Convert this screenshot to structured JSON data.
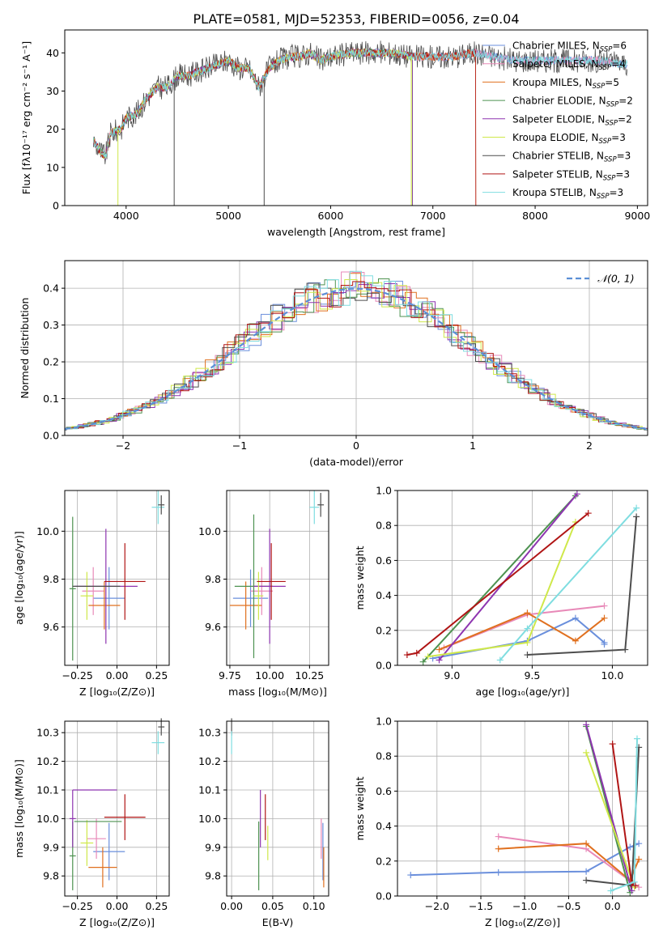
{
  "title": "PLATE=0581, MJD=52353, FIBERID=0056, z=0.04",
  "colors": {
    "Chabrier MILES": "#6a8fdc",
    "Salpeter MILES": "#e889b8",
    "Kroupa MILES": "#e0701f",
    "Chabrier ELODIE": "#4d9250",
    "Salpeter ELODIE": "#8e35b0",
    "Kroupa ELODIE": "#cfe84a",
    "Chabrier STELIB": "#4d4d4d",
    "Salpeter STELIB": "#b01515",
    "Kroupa STELIB": "#7fdde0",
    "normal": "#5b8fd6"
  },
  "chart_data": [
    {
      "type": "line",
      "xlabel": "wavelength [Angstrom, rest frame]",
      "ylabel": "Flux [fλ10⁻¹⁷ erg cm⁻² s⁻¹ A⁻¹]",
      "xlim": [
        3400,
        9100
      ],
      "ylim": [
        0,
        46
      ],
      "xticks": [
        4000,
        5000,
        6000,
        7000,
        8000,
        9000
      ],
      "yticks": [
        0,
        10,
        20,
        30,
        40
      ],
      "legend": [
        "Chabrier MILES, N_SSP=6",
        "Salpeter MILES, N_SSP=4",
        "Kroupa MILES, N_SSP=5",
        "Chabrier ELODIE, N_SSP=2",
        "Salpeter ELODIE, N_SSP=2",
        "Kroupa ELODIE, N_SSP=3",
        "Chabrier STELIB, N_SSP=3",
        "Salpeter STELIB, N_SSP=3",
        "Kroupa STELIB, N_SSP=3"
      ],
      "legend_position": "right",
      "series": [
        {
          "name": "Chabrier MILES",
          "x_range": [
            3680,
            8900
          ],
          "profile": [
            [
              3680,
              17
            ],
            [
              3750,
              14
            ],
            [
              3800,
              13
            ],
            [
              3850,
              19
            ],
            [
              3950,
              20
            ],
            [
              4000,
              23
            ],
            [
              4100,
              24
            ],
            [
              4200,
              28
            ],
            [
              4300,
              31
            ],
            [
              4400,
              31
            ],
            [
              4500,
              34
            ],
            [
              4600,
              34
            ],
            [
              4700,
              35
            ],
            [
              4800,
              36
            ],
            [
              4900,
              37
            ],
            [
              5000,
              38
            ],
            [
              5100,
              36
            ],
            [
              5200,
              36
            ],
            [
              5300,
              31
            ],
            [
              5400,
              36
            ],
            [
              5500,
              38
            ],
            [
              5600,
              39
            ],
            [
              5700,
              39
            ],
            [
              5800,
              40
            ],
            [
              5900,
              38
            ],
            [
              6000,
              39
            ],
            [
              6200,
              40
            ],
            [
              6400,
              40
            ],
            [
              6600,
              40
            ],
            [
              6800,
              39
            ],
            [
              7000,
              39
            ],
            [
              7200,
              39
            ],
            [
              7400,
              40
            ],
            [
              7600,
              39
            ],
            [
              7800,
              38
            ],
            [
              8000,
              38
            ],
            [
              8200,
              38
            ],
            [
              8400,
              38
            ],
            [
              8600,
              38
            ],
            [
              8900,
              37
            ]
          ]
        },
        {
          "name": "Salpeter MILES",
          "x_range": [
            3680,
            8800
          ]
        },
        {
          "name": "Kroupa MILES",
          "x_range": [
            3680,
            7420
          ],
          "note": "drops to 0 at ~7420 A"
        },
        {
          "name": "Chabrier ELODIE",
          "x_range": [
            3680,
            6800
          ]
        },
        {
          "name": "Salpeter ELODIE",
          "x_range": [
            3680,
            6800
          ]
        },
        {
          "name": "Kroupa ELODIE",
          "x_range": [
            3680,
            6790
          ],
          "note": "drops to 0 at ~3920 A and ~6790 A"
        },
        {
          "name": "Chabrier STELIB",
          "x_range": [
            3680,
            8900
          ],
          "note": "observed spectrum-like grey, spikes at 4470, 5350 A"
        },
        {
          "name": "Salpeter STELIB",
          "x_range": [
            3680,
            7420
          ]
        },
        {
          "name": "Kroupa STELIB",
          "x_range": [
            3680,
            8900
          ]
        }
      ]
    },
    {
      "type": "histogram",
      "xlabel": "(data-model)/error",
      "ylabel": "Normed distribution",
      "xlim": [
        -2.5,
        2.5
      ],
      "ylim": [
        0,
        0.475
      ],
      "xticks": [
        -2,
        -1,
        0,
        1,
        2
      ],
      "yticks": [
        0.0,
        0.1,
        0.2,
        0.3,
        0.4
      ],
      "grid": true,
      "legend": [
        "𝒩(0, 1)"
      ],
      "legend_position": "top-right",
      "bin_width": 0.1,
      "series": [
        {
          "name": "Chabrier MILES",
          "seed": 1
        },
        {
          "name": "Salpeter MILES",
          "seed": 2
        },
        {
          "name": "Kroupa MILES",
          "seed": 3
        },
        {
          "name": "Chabrier ELODIE",
          "seed": 4
        },
        {
          "name": "Salpeter ELODIE",
          "seed": 5
        },
        {
          "name": "Kroupa ELODIE",
          "seed": 6
        },
        {
          "name": "Chabrier STELIB",
          "seed": 7
        },
        {
          "name": "Salpeter STELIB",
          "seed": 8
        },
        {
          "name": "Kroupa STELIB",
          "seed": 9
        }
      ]
    },
    {
      "type": "errorbar",
      "xlabel": "Z [log₁₀(Z/Z⊙)]",
      "ylabel": "age  [log₁₀(age/yr)]",
      "xlim": [
        -0.33,
        0.33
      ],
      "ylim": [
        9.44,
        10.17
      ],
      "xticks": [
        -0.25,
        0,
        0.25
      ],
      "xticklabels": [
        "−0.25",
        "0.00",
        "0.25"
      ],
      "yticks": [
        9.6,
        9.8,
        10.0
      ],
      "grid": true,
      "points": [
        {
          "series": "Chabrier MILES",
          "x": -0.05,
          "xerr": 0.1,
          "y": 9.72,
          "yerr": 0.13
        },
        {
          "series": "Salpeter MILES",
          "x": -0.15,
          "xerr": 0.07,
          "y": 9.75,
          "yerr": 0.1
        },
        {
          "series": "Kroupa MILES",
          "x": -0.08,
          "xerr": 0.1,
          "y": 9.69,
          "yerr": 0.1
        },
        {
          "series": "Chabrier ELODIE",
          "x": -0.28,
          "xerr": 0.02,
          "y": 9.76,
          "yerr": 0.3
        },
        {
          "series": "Salpeter ELODIE",
          "x": -0.07,
          "xerr": 0.2,
          "y": 9.77,
          "yerr": 0.24
        },
        {
          "series": "Kroupa ELODIE",
          "x": -0.19,
          "xerr": 0.04,
          "y": 9.73,
          "yerr": 0.1
        },
        {
          "series": "Chabrier STELIB",
          "x": -0.13,
          "xerr": 0.15,
          "y": 9.77,
          "yerr": 0.0
        },
        {
          "series": "Salpeter STELIB",
          "x": 0.05,
          "xerr": 0.13,
          "y": 9.79,
          "yerr": 0.16
        },
        {
          "series": "Kroupa STELIB",
          "x": 0.26,
          "xerr": 0.04,
          "y": 10.1,
          "yerr": 0.07
        },
        {
          "series": "Chabrier STELIB",
          "x": 0.28,
          "xerr": 0.02,
          "y": 10.11,
          "yerr": 0.04
        }
      ]
    },
    {
      "type": "errorbar",
      "xlabel": "mass [log₁₀(M/M⊙)]",
      "ylabel": "",
      "xlim": [
        9.73,
        10.37
      ],
      "ylim": [
        9.44,
        10.17
      ],
      "xticks": [
        9.75,
        10.0,
        10.25
      ],
      "xticklabels": [
        "9.75",
        "10.00",
        "10.25"
      ],
      "yticks": [
        9.6,
        9.8,
        10.0
      ],
      "grid": true,
      "points": [
        {
          "series": "Chabrier MILES",
          "x": 9.88,
          "xerr": 0.11,
          "y": 9.72,
          "yerr": 0.12
        },
        {
          "series": "Salpeter MILES",
          "x": 9.95,
          "xerr": 0.07,
          "y": 9.75,
          "yerr": 0.1
        },
        {
          "series": "Kroupa MILES",
          "x": 9.85,
          "xerr": 0.1,
          "y": 9.69,
          "yerr": 0.1
        },
        {
          "series": "Chabrier ELODIE",
          "x": 9.9,
          "xerr": 0.12,
          "y": 9.77,
          "yerr": 0.3
        },
        {
          "series": "Salpeter ELODIE",
          "x": 10.0,
          "xerr": 0.1,
          "y": 9.77,
          "yerr": 0.24
        },
        {
          "series": "Kroupa ELODIE",
          "x": 9.93,
          "xerr": 0.03,
          "y": 9.73,
          "yerr": 0.1
        },
        {
          "series": "Salpeter STELIB",
          "x": 10.01,
          "xerr": 0.09,
          "y": 9.79,
          "yerr": 0.16
        },
        {
          "series": "Kroupa STELIB",
          "x": 10.28,
          "xerr": 0.03,
          "y": 10.1,
          "yerr": 0.07
        },
        {
          "series": "Chabrier STELIB",
          "x": 10.32,
          "xerr": 0.02,
          "y": 10.11,
          "yerr": 0.05
        }
      ]
    },
    {
      "type": "line",
      "xlabel": "age  [log₁₀(age/yr)]",
      "ylabel": "mass weight",
      "xlim": [
        8.66,
        10.22
      ],
      "ylim": [
        0,
        1
      ],
      "xticks": [
        9.0,
        9.5,
        10.0
      ],
      "xticklabels": [
        "9.0",
        "9.5",
        "10.0"
      ],
      "yticks": [
        0.0,
        0.2,
        0.4,
        0.6,
        0.8,
        1.0
      ],
      "grid": true,
      "series": [
        {
          "name": "Chabrier MILES",
          "x": [
            8.88,
            9.47,
            9.77,
            9.95,
            9.95
          ],
          "y": [
            0.04,
            0.14,
            0.27,
            0.13,
            0.12
          ]
        },
        {
          "name": "Salpeter MILES",
          "x": [
            8.95,
            9.47,
            9.95
          ],
          "y": [
            0.1,
            0.29,
            0.34
          ]
        },
        {
          "name": "Kroupa MILES",
          "x": [
            8.92,
            9.47,
            9.77,
            9.95
          ],
          "y": [
            0.09,
            0.3,
            0.14,
            0.27
          ]
        },
        {
          "name": "Chabrier ELODIE",
          "x": [
            8.82,
            9.77
          ],
          "y": [
            0.02,
            0.97
          ]
        },
        {
          "name": "Salpeter ELODIE",
          "x": [
            8.92,
            9.78
          ],
          "y": [
            0.03,
            0.98
          ]
        },
        {
          "name": "Kroupa ELODIE",
          "x": [
            8.85,
            9.47,
            9.77
          ],
          "y": [
            0.05,
            0.13,
            0.82
          ]
        },
        {
          "name": "Chabrier STELIB",
          "x": [
            9.47,
            10.08,
            10.15
          ],
          "y": [
            0.06,
            0.09,
            0.85
          ]
        },
        {
          "name": "Salpeter STELIB",
          "x": [
            8.72,
            8.78,
            9.85
          ],
          "y": [
            0.06,
            0.07,
            0.87
          ]
        },
        {
          "name": "Kroupa STELIB",
          "x": [
            9.3,
            9.47,
            10.15
          ],
          "y": [
            0.03,
            0.21,
            0.9
          ]
        }
      ]
    },
    {
      "type": "errorbar",
      "xlabel": "Z [log₁₀(Z/Z⊙)]",
      "ylabel": "mass [log₁₀(M/M⊙)]",
      "xlim": [
        -0.33,
        0.33
      ],
      "ylim": [
        9.73,
        10.34
      ],
      "xticks": [
        -0.25,
        0,
        0.25
      ],
      "xticklabels": [
        "−0.25",
        "0.00",
        "0.25"
      ],
      "yticks": [
        9.8,
        9.9,
        10.0,
        10.1,
        10.2,
        10.3
      ],
      "grid": true,
      "points": [
        {
          "series": "Chabrier MILES",
          "x": -0.05,
          "xerr": 0.1,
          "y": 9.885,
          "yerr": 0.1
        },
        {
          "series": "Salpeter MILES",
          "x": -0.13,
          "xerr": 0.06,
          "y": 9.93,
          "yerr": 0.07
        },
        {
          "series": "Kroupa MILES",
          "x": -0.09,
          "xerr": 0.09,
          "y": 9.83,
          "yerr": 0.07
        },
        {
          "series": "Chabrier ELODIE",
          "x": -0.28,
          "xerr": 0.02,
          "y": 9.87,
          "yerr": 0.12
        },
        {
          "series": "Salpeter ELODIE",
          "x": -0.28,
          "xerr": 0.02,
          "y": 10.0,
          "yerr": 0.1
        },
        {
          "series": "Kroupa ELODIE",
          "x": -0.19,
          "xerr": 0.04,
          "y": 9.915,
          "yerr": 0.08
        },
        {
          "series": "Chabrier ELODIE",
          "x": -0.12,
          "xerr": 0.15,
          "y": 9.99,
          "yerr": 0.0
        },
        {
          "series": "Salpeter ELODIE",
          "x": -0.14,
          "xerr": 0.14,
          "y": 10.1,
          "yerr": 0.0
        },
        {
          "series": "Salpeter STELIB",
          "x": 0.05,
          "xerr": 0.13,
          "y": 10.005,
          "yerr": 0.08
        },
        {
          "series": "Kroupa STELIB",
          "x": 0.26,
          "xerr": 0.04,
          "y": 10.265,
          "yerr": 0.04
        },
        {
          "series": "Chabrier STELIB",
          "x": 0.28,
          "xerr": 0.02,
          "y": 10.32,
          "yerr": 0.03
        }
      ]
    },
    {
      "type": "errorbar",
      "xlabel": "E(B-V)",
      "ylabel": "",
      "xlim": [
        -0.006,
        0.118
      ],
      "ylim": [
        9.73,
        10.34
      ],
      "xticks": [
        0.0,
        0.05,
        0.1
      ],
      "xticklabels": [
        "0.00",
        "0.05",
        "0.10"
      ],
      "yticks": [
        9.8,
        9.9,
        10.0,
        10.1,
        10.2,
        10.3
      ],
      "grid": true,
      "points": [
        {
          "series": "Chabrier STELIB",
          "x": 0.0,
          "xerr": 0.0,
          "y": 10.32,
          "yerr": 0.03
        },
        {
          "series": "Kroupa STELIB",
          "x": 0.0,
          "xerr": 0.0,
          "y": 10.265,
          "yerr": 0.04
        },
        {
          "series": "Chabrier ELODIE",
          "x": 0.033,
          "xerr": 0.0,
          "y": 9.87,
          "yerr": 0.12
        },
        {
          "series": "Salpeter ELODIE",
          "x": 0.035,
          "xerr": 0.0,
          "y": 10.0,
          "yerr": 0.1
        },
        {
          "series": "Salpeter STELIB",
          "x": 0.041,
          "xerr": 0.0,
          "y": 10.005,
          "yerr": 0.08
        },
        {
          "series": "Kroupa ELODIE",
          "x": 0.044,
          "xerr": 0.0,
          "y": 9.915,
          "yerr": 0.06
        },
        {
          "series": "Salpeter MILES",
          "x": 0.109,
          "xerr": 0.0,
          "y": 9.93,
          "yerr": 0.07
        },
        {
          "series": "Chabrier MILES",
          "x": 0.111,
          "xerr": 0.0,
          "y": 9.885,
          "yerr": 0.1
        },
        {
          "series": "Kroupa MILES",
          "x": 0.112,
          "xerr": 0.0,
          "y": 9.83,
          "yerr": 0.07
        }
      ]
    },
    {
      "type": "line",
      "xlabel": "Z [log₁₀(Z/Z⊙)]",
      "ylabel": "mass weight",
      "xlim": [
        -2.45,
        0.4
      ],
      "ylim": [
        0,
        1
      ],
      "xticks": [
        -2.0,
        -1.5,
        -1.0,
        -0.5,
        0.0
      ],
      "xticklabels": [
        "−2.0",
        "−1.5",
        "−1.0",
        "−0.5",
        "0.0"
      ],
      "yticks": [
        0.0,
        0.2,
        0.4,
        0.6,
        0.8,
        1.0
      ],
      "grid": true,
      "series": [
        {
          "name": "Chabrier MILES",
          "x": [
            -2.3,
            -1.3,
            -0.3,
            0.2,
            0.3
          ],
          "y": [
            0.12,
            0.135,
            0.14,
            0.28,
            0.3
          ]
        },
        {
          "name": "Salpeter MILES",
          "x": [
            -1.3,
            -0.3,
            0.3
          ],
          "y": [
            0.34,
            0.27,
            0.05
          ]
        },
        {
          "name": "Kroupa MILES",
          "x": [
            -1.3,
            -0.3,
            0.2,
            0.3
          ],
          "y": [
            0.27,
            0.3,
            0.09,
            0.21
          ]
        },
        {
          "name": "Chabrier ELODIE",
          "x": [
            -0.3,
            0.2
          ],
          "y": [
            0.97,
            0.02
          ]
        },
        {
          "name": "Salpeter ELODIE",
          "x": [
            -0.3,
            0.22
          ],
          "y": [
            0.98,
            0.03
          ]
        },
        {
          "name": "Kroupa ELODIE",
          "x": [
            -0.3,
            0.25
          ],
          "y": [
            0.82,
            0.05
          ]
        },
        {
          "name": "Chabrier STELIB",
          "x": [
            -0.3,
            0.22,
            0.3
          ],
          "y": [
            0.09,
            0.06,
            0.85
          ]
        },
        {
          "name": "Salpeter STELIB",
          "x": [
            0.0,
            0.22,
            0.26
          ],
          "y": [
            0.87,
            0.07,
            0.06
          ]
        },
        {
          "name": "Kroupa STELIB",
          "x": [
            -0.02,
            0.25,
            0.28
          ],
          "y": [
            0.03,
            0.08,
            0.9
          ]
        }
      ]
    }
  ]
}
